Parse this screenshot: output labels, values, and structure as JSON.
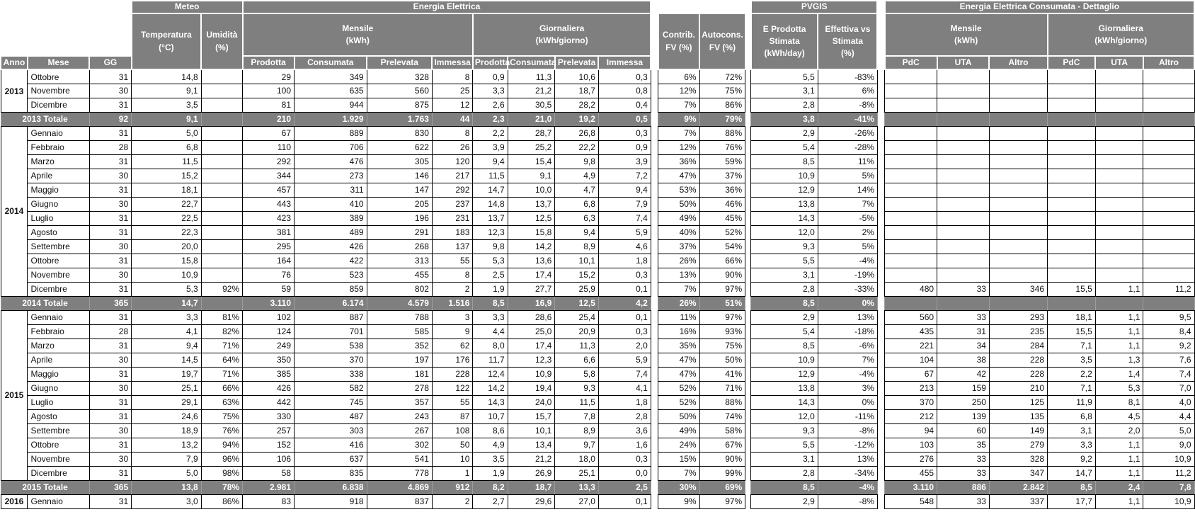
{
  "colors": {
    "header_bg": "#7f7f7f",
    "header_text": "#ffffff",
    "grid": "#000000",
    "cell_bg": "#ffffff",
    "cell_text": "#111111"
  },
  "header": {
    "groups": {
      "meteo": "Meteo",
      "energia": "Energia Elettrica",
      "pvgis": "PVGIS",
      "dettaglio": "Energia Elettrica Consumata - Dettaglio"
    },
    "sub": {
      "temperatura": "Temperatura\n(°C)",
      "umidita": "Umidità\n(%)",
      "mensile": "Mensile\n(kWh)",
      "giornaliera": "Giornaliera\n(kWh/giorno)",
      "contrib": "Contrib.\nFV (%)",
      "autocons": "Autocons.\nFV (%)",
      "e_prodotta": "E Prodotta\nStimata\n(kWh/day)",
      "effettiva": "Effettiva vs\nStimata\n(%)"
    },
    "cols": {
      "anno": "Anno",
      "mese": "Mese",
      "gg": "GG",
      "prodotta": "Prodotta",
      "consumata": "Consumata",
      "prelevata": "Prelevata",
      "immessa": "Immessa",
      "pdc": "PdC",
      "uta": "UTA",
      "altro": "Altro"
    }
  },
  "row_value_order": [
    "mese",
    "gg",
    "temperatura",
    "umidita",
    "mensile_prodotta",
    "mensile_consumata",
    "mensile_prelevata",
    "mensile_immessa",
    "giorn_prodotta",
    "giorn_consumata",
    "giorn_prelevata",
    "giorn_immessa",
    "contrib_fv",
    "autocons_fv",
    "e_prodotta_stimata",
    "effettiva_vs_stimata",
    "pdc_mensile",
    "uta_mensile",
    "altro_mensile",
    "pdc_giorn",
    "uta_giorn",
    "altro_giorn"
  ],
  "years": [
    {
      "year": "2013",
      "months": [
        [
          "Ottobre",
          "31",
          "14,8",
          "",
          "29",
          "349",
          "328",
          "8",
          "0,9",
          "11,3",
          "10,6",
          "0,3",
          "6%",
          "72%",
          "5,5",
          "-83%",
          "",
          "",
          "",
          "",
          "",
          ""
        ],
        [
          "Novembre",
          "30",
          "9,1",
          "",
          "100",
          "635",
          "560",
          "25",
          "3,3",
          "21,2",
          "18,7",
          "0,8",
          "12%",
          "75%",
          "3,1",
          "6%",
          "",
          "",
          "",
          "",
          "",
          ""
        ],
        [
          "Dicembre",
          "31",
          "3,5",
          "",
          "81",
          "944",
          "875",
          "12",
          "2,6",
          "30,5",
          "28,2",
          "0,4",
          "7%",
          "86%",
          "2,8",
          "-8%",
          "",
          "",
          "",
          "",
          "",
          ""
        ]
      ],
      "total": [
        "2013 Totale",
        "92",
        "9,1",
        "",
        "210",
        "1.929",
        "1.763",
        "44",
        "2,3",
        "21,0",
        "19,2",
        "0,5",
        "9%",
        "79%",
        "3,8",
        "-41%",
        "",
        "",
        "",
        "",
        "",
        ""
      ]
    },
    {
      "year": "2014",
      "months": [
        [
          "Gennaio",
          "31",
          "5,0",
          "",
          "67",
          "889",
          "830",
          "8",
          "2,2",
          "28,7",
          "26,8",
          "0,3",
          "7%",
          "88%",
          "2,9",
          "-26%",
          "",
          "",
          "",
          "",
          "",
          ""
        ],
        [
          "Febbraio",
          "28",
          "6,8",
          "",
          "110",
          "706",
          "622",
          "26",
          "3,9",
          "25,2",
          "22,2",
          "0,9",
          "12%",
          "76%",
          "5,4",
          "-28%",
          "",
          "",
          "",
          "",
          "",
          ""
        ],
        [
          "Marzo",
          "31",
          "11,5",
          "",
          "292",
          "476",
          "305",
          "120",
          "9,4",
          "15,4",
          "9,8",
          "3,9",
          "36%",
          "59%",
          "8,5",
          "11%",
          "",
          "",
          "",
          "",
          "",
          ""
        ],
        [
          "Aprile",
          "30",
          "15,2",
          "",
          "344",
          "273",
          "146",
          "217",
          "11,5",
          "9,1",
          "4,9",
          "7,2",
          "47%",
          "37%",
          "10,9",
          "5%",
          "",
          "",
          "",
          "",
          "",
          ""
        ],
        [
          "Maggio",
          "31",
          "18,1",
          "",
          "457",
          "311",
          "147",
          "292",
          "14,7",
          "10,0",
          "4,7",
          "9,4",
          "53%",
          "36%",
          "12,9",
          "14%",
          "",
          "",
          "",
          "",
          "",
          ""
        ],
        [
          "Giugno",
          "30",
          "22,7",
          "",
          "443",
          "410",
          "205",
          "237",
          "14,8",
          "13,7",
          "6,8",
          "7,9",
          "50%",
          "46%",
          "13,8",
          "7%",
          "",
          "",
          "",
          "",
          "",
          ""
        ],
        [
          "Luglio",
          "31",
          "22,5",
          "",
          "423",
          "389",
          "196",
          "231",
          "13,7",
          "12,5",
          "6,3",
          "7,4",
          "49%",
          "45%",
          "14,3",
          "-5%",
          "",
          "",
          "",
          "",
          "",
          ""
        ],
        [
          "Agosto",
          "31",
          "22,3",
          "",
          "381",
          "489",
          "291",
          "183",
          "12,3",
          "15,8",
          "9,4",
          "5,9",
          "40%",
          "52%",
          "12,0",
          "2%",
          "",
          "",
          "",
          "",
          "",
          ""
        ],
        [
          "Settembre",
          "30",
          "20,0",
          "",
          "295",
          "426",
          "268",
          "137",
          "9,8",
          "14,2",
          "8,9",
          "4,6",
          "37%",
          "54%",
          "9,3",
          "5%",
          "",
          "",
          "",
          "",
          "",
          ""
        ],
        [
          "Ottobre",
          "31",
          "15,8",
          "",
          "164",
          "422",
          "313",
          "55",
          "5,3",
          "13,6",
          "10,1",
          "1,8",
          "26%",
          "66%",
          "5,5",
          "-4%",
          "",
          "",
          "",
          "",
          "",
          ""
        ],
        [
          "Novembre",
          "30",
          "10,9",
          "",
          "76",
          "523",
          "455",
          "8",
          "2,5",
          "17,4",
          "15,2",
          "0,3",
          "13%",
          "90%",
          "3,1",
          "-19%",
          "",
          "",
          "",
          "",
          "",
          ""
        ],
        [
          "Dicembre",
          "31",
          "5,3",
          "92%",
          "59",
          "859",
          "802",
          "2",
          "1,9",
          "27,7",
          "25,9",
          "0,1",
          "7%",
          "97%",
          "2,8",
          "-33%",
          "480",
          "33",
          "346",
          "15,5",
          "1,1",
          "11,2"
        ]
      ],
      "total": [
        "2014 Totale",
        "365",
        "14,7",
        "",
        "3.110",
        "6.174",
        "4.579",
        "1.516",
        "8,5",
        "16,9",
        "12,5",
        "4,2",
        "26%",
        "51%",
        "8,5",
        "0%",
        "",
        "",
        "",
        "",
        "",
        ""
      ]
    },
    {
      "year": "2015",
      "months": [
        [
          "Gennaio",
          "31",
          "3,3",
          "81%",
          "102",
          "887",
          "788",
          "3",
          "3,3",
          "28,6",
          "25,4",
          "0,1",
          "11%",
          "97%",
          "2,9",
          "13%",
          "560",
          "33",
          "293",
          "18,1",
          "1,1",
          "9,5"
        ],
        [
          "Febbraio",
          "28",
          "4,1",
          "82%",
          "124",
          "701",
          "585",
          "9",
          "4,4",
          "25,0",
          "20,9",
          "0,3",
          "16%",
          "93%",
          "5,4",
          "-18%",
          "435",
          "31",
          "235",
          "15,5",
          "1,1",
          "8,4"
        ],
        [
          "Marzo",
          "31",
          "9,4",
          "71%",
          "249",
          "538",
          "352",
          "62",
          "8,0",
          "17,4",
          "11,3",
          "2,0",
          "35%",
          "75%",
          "8,5",
          "-6%",
          "221",
          "34",
          "284",
          "7,1",
          "1,1",
          "9,2"
        ],
        [
          "Aprile",
          "30",
          "14,5",
          "64%",
          "350",
          "370",
          "197",
          "176",
          "11,7",
          "12,3",
          "6,6",
          "5,9",
          "47%",
          "50%",
          "10,9",
          "7%",
          "104",
          "38",
          "228",
          "3,5",
          "1,3",
          "7,6"
        ],
        [
          "Maggio",
          "31",
          "19,7",
          "71%",
          "385",
          "338",
          "181",
          "228",
          "12,4",
          "10,9",
          "5,8",
          "7,4",
          "47%",
          "41%",
          "12,9",
          "-4%",
          "67",
          "42",
          "228",
          "2,2",
          "1,4",
          "7,4"
        ],
        [
          "Giugno",
          "30",
          "25,1",
          "66%",
          "426",
          "582",
          "278",
          "122",
          "14,2",
          "19,4",
          "9,3",
          "4,1",
          "52%",
          "71%",
          "13,8",
          "3%",
          "213",
          "159",
          "210",
          "7,1",
          "5,3",
          "7,0"
        ],
        [
          "Luglio",
          "31",
          "29,1",
          "63%",
          "442",
          "745",
          "357",
          "55",
          "14,3",
          "24,0",
          "11,5",
          "1,8",
          "52%",
          "88%",
          "14,3",
          "0%",
          "370",
          "250",
          "125",
          "11,9",
          "8,1",
          "4,0"
        ],
        [
          "Agosto",
          "31",
          "24,6",
          "75%",
          "330",
          "487",
          "243",
          "87",
          "10,7",
          "15,7",
          "7,8",
          "2,8",
          "50%",
          "74%",
          "12,0",
          "-11%",
          "212",
          "139",
          "135",
          "6,8",
          "4,5",
          "4,4"
        ],
        [
          "Settembre",
          "30",
          "18,9",
          "76%",
          "257",
          "303",
          "267",
          "108",
          "8,6",
          "10,1",
          "8,9",
          "3,6",
          "49%",
          "58%",
          "9,3",
          "-8%",
          "94",
          "60",
          "149",
          "3,1",
          "2,0",
          "5,0"
        ],
        [
          "Ottobre",
          "31",
          "13,2",
          "94%",
          "152",
          "416",
          "302",
          "50",
          "4,9",
          "13,4",
          "9,7",
          "1,6",
          "24%",
          "67%",
          "5,5",
          "-12%",
          "103",
          "35",
          "279",
          "3,3",
          "1,1",
          "9,0"
        ],
        [
          "Novembre",
          "30",
          "7,9",
          "96%",
          "106",
          "637",
          "541",
          "10",
          "3,5",
          "21,2",
          "18,0",
          "0,3",
          "15%",
          "90%",
          "3,1",
          "13%",
          "276",
          "33",
          "328",
          "9,2",
          "1,1",
          "10,9"
        ],
        [
          "Dicembre",
          "31",
          "5,0",
          "98%",
          "58",
          "835",
          "778",
          "1",
          "1,9",
          "26,9",
          "25,1",
          "0,0",
          "7%",
          "99%",
          "2,8",
          "-34%",
          "455",
          "33",
          "347",
          "14,7",
          "1,1",
          "11,2"
        ]
      ],
      "total": [
        "2015 Totale",
        "365",
        "13,8",
        "78%",
        "2.981",
        "6.838",
        "4.869",
        "912",
        "8,2",
        "18,7",
        "13,3",
        "2,5",
        "30%",
        "69%",
        "8,5",
        "-4%",
        "3.110",
        "886",
        "2.842",
        "8,5",
        "2,4",
        "7,8"
      ]
    },
    {
      "year": "2016",
      "months": [
        [
          "Gennaio",
          "31",
          "3,0",
          "86%",
          "83",
          "918",
          "837",
          "2",
          "2,7",
          "29,6",
          "27,0",
          "0,1",
          "9%",
          "97%",
          "2,9",
          "-8%",
          "548",
          "33",
          "337",
          "17,7",
          "1,1",
          "10,9"
        ]
      ],
      "total": null
    }
  ]
}
